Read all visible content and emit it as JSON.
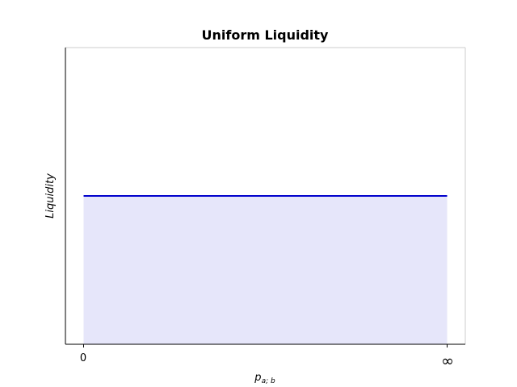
{
  "chart_data": {
    "type": "area",
    "title": "Uniform Liquidity",
    "xlabel_base": "p",
    "xlabel_sub": "a; b",
    "ylabel": "Liquidity",
    "x_ticks": [
      "0",
      "∞"
    ],
    "series": [
      {
        "x": [
          0,
          1
        ],
        "y": [
          1,
          1
        ],
        "line_color": "#0000cc",
        "fill_color": "#e6e6fa"
      }
    ],
    "xlim": [
      -0.05,
      1.05
    ],
    "ylim": [
      0,
      2
    ],
    "grid": false,
    "legend": "none"
  }
}
